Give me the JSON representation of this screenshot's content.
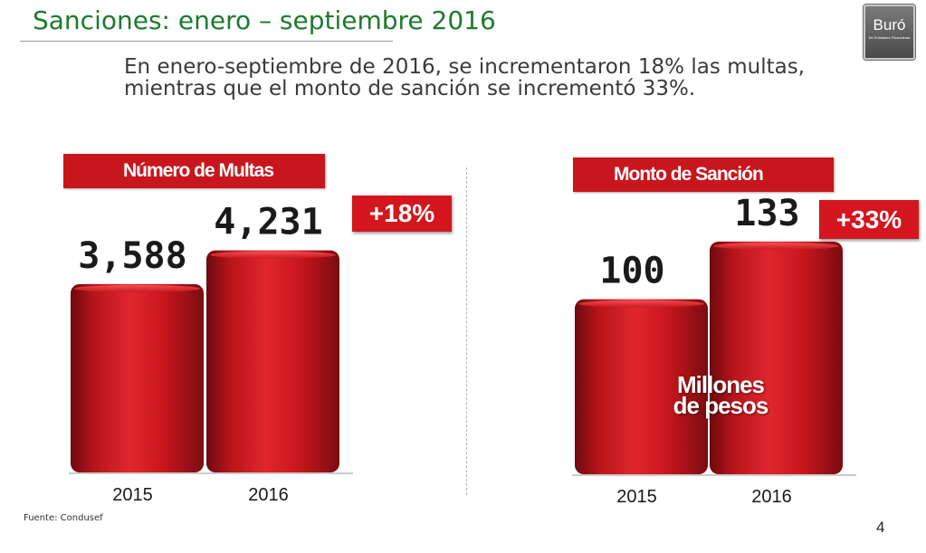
{
  "header": {
    "title": "Sanciones: enero – septiembre 2016",
    "logo_main": "Buró",
    "logo_sub": "De Entidades Financieras"
  },
  "summary": "En enero-septiembre de 2016, se incrementaron 18% las multas, mientras que el monto de sanción se incrementó 33%.",
  "left_panel": {
    "label": "Número de Multas",
    "badge": "+18%"
  },
  "right_panel": {
    "label": "Monto de Sanción",
    "badge": "+33%",
    "unit_line1": "Millones",
    "unit_line2": "de pesos"
  },
  "footer": {
    "source": "Fuente: Condusef",
    "page": "4"
  },
  "colors": {
    "title_green": "#1e7a2e",
    "bar_red": "#c8161d",
    "badge_red": "#d4161e"
  },
  "chart_data": [
    {
      "type": "bar",
      "title": "Número de Multas",
      "categories": [
        "2015",
        "2016"
      ],
      "values": [
        3588,
        4231
      ],
      "value_labels": [
        "3,588",
        "4,231"
      ],
      "ylim": [
        0,
        5000
      ],
      "grid": false
    },
    {
      "type": "bar",
      "title": "Monto de Sanción",
      "categories": [
        "2015",
        "2016"
      ],
      "values": [
        100,
        133
      ],
      "value_labels": [
        "100",
        "133"
      ],
      "ylabel": "Millones de pesos",
      "ylim": [
        0,
        150
      ],
      "grid": false
    }
  ]
}
